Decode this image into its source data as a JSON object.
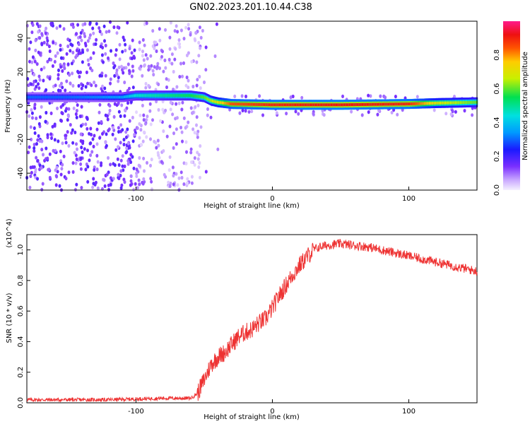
{
  "title": "GN02.2023.201.10.44.C38",
  "chart_data": [
    {
      "type": "heatmap",
      "xlabel": "Height of straight line (km)",
      "ylabel": "Frequency (Hz)",
      "xlim": [
        -180,
        150
      ],
      "ylim": [
        -50,
        50
      ],
      "xticks": [
        -100,
        0,
        100
      ],
      "yticks": [
        -40,
        -20,
        0,
        20,
        40
      ],
      "colorbar": {
        "label": "Normalized spectral amplitude",
        "range": [
          0,
          1
        ],
        "ticks": [
          0.0,
          0.2,
          0.4,
          0.6,
          0.8
        ]
      },
      "ridge": [
        {
          "x": -180,
          "y": 5,
          "amp": 0.3
        },
        {
          "x": -150,
          "y": 5,
          "amp": 0.3
        },
        {
          "x": -110,
          "y": 5,
          "amp": 0.35
        },
        {
          "x": -100,
          "y": 6,
          "amp": 0.45
        },
        {
          "x": -80,
          "y": 6,
          "amp": 0.5
        },
        {
          "x": -60,
          "y": 6,
          "amp": 0.55
        },
        {
          "x": -50,
          "y": 5,
          "amp": 0.6
        },
        {
          "x": -45,
          "y": 3,
          "amp": 0.65
        },
        {
          "x": -40,
          "y": 2,
          "amp": 0.7
        },
        {
          "x": -30,
          "y": 1,
          "amp": 0.85
        },
        {
          "x": 0,
          "y": 0.5,
          "amp": 0.9
        },
        {
          "x": 50,
          "y": 0.5,
          "amp": 0.92
        },
        {
          "x": 100,
          "y": 1,
          "amp": 0.9
        },
        {
          "x": 120,
          "y": 1.5,
          "amp": 0.7
        },
        {
          "x": 150,
          "y": 2,
          "amp": 0.6
        }
      ]
    },
    {
      "type": "line",
      "xlabel": "Height of straight line (km)",
      "ylabel": "SNR (10 * v/v)",
      "yscale_note": "(x10^4)",
      "xlim": [
        -180,
        150
      ],
      "ylim": [
        0,
        1.1
      ],
      "xticks": [
        -100,
        0,
        100
      ],
      "yticks": [
        0.0,
        0.2,
        0.4,
        0.6,
        0.8,
        1.0
      ],
      "color": "#ee3333",
      "series": [
        {
          "x": [
            -180,
            -160,
            -140,
            -120,
            -100,
            -80,
            -60,
            -55,
            -50,
            -45,
            -40,
            -35,
            -30,
            -25,
            -20,
            -15,
            -10,
            -5,
            0,
            5,
            10,
            15,
            20,
            25,
            30,
            35,
            40,
            50,
            60,
            70,
            80,
            90,
            100,
            110,
            120,
            130,
            140,
            150
          ],
          "values": [
            0.02,
            0.02,
            0.02,
            0.02,
            0.025,
            0.03,
            0.03,
            0.06,
            0.15,
            0.25,
            0.3,
            0.33,
            0.38,
            0.43,
            0.46,
            0.48,
            0.52,
            0.55,
            0.62,
            0.7,
            0.77,
            0.84,
            0.9,
            0.95,
            1.0,
            1.02,
            1.03,
            1.04,
            1.03,
            1.02,
            1.0,
            0.98,
            0.96,
            0.94,
            0.92,
            0.9,
            0.88,
            0.86
          ]
        }
      ]
    }
  ]
}
